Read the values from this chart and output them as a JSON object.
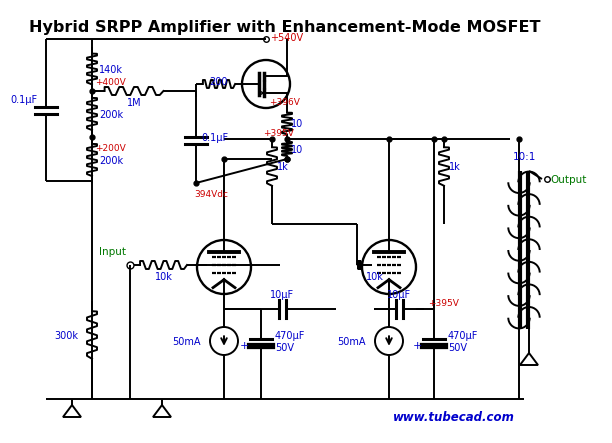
{
  "title": "Hybrid SRPP Amplifier with Enhancement-Mode MOSFET",
  "title_fontsize": 11.5,
  "bg_color": "#ffffff",
  "wire_color": "#000000",
  "label_blue": "#0000cc",
  "label_red": "#cc0000",
  "label_green": "#007700",
  "website": "www.tubecad.com",
  "lw": 1.4,
  "V_540": "+540V",
  "V_400": "+400V",
  "V_396": "+396V",
  "V_395_top": "+395V",
  "V_395_bot": "+395V",
  "V_200": "+200V",
  "V_394": "394Vdc",
  "ratio": "10:1",
  "output_label": "Output",
  "input_label": "Input",
  "R_140k": "140k",
  "R_1M": "1M",
  "R_200": "200",
  "R_200k_top": "200k",
  "R_200k_bot": "200k",
  "R_10_top": "10",
  "R_10_bot": "10",
  "R_1k_left": "1k",
  "R_1k_right": "1k",
  "R_10k_left": "10k",
  "R_10k_right": "10k",
  "R_300k": "300k",
  "C_01uF_left": "0.1μF",
  "C_01uF_mid": "0.1μF",
  "C_470uF_left": "470μF\n50V",
  "C_470uF_right": "470μF\n50V",
  "C_10uF_left": "10μF",
  "C_10uF_right": "10μF",
  "I_50mA_left": "50mA",
  "I_50mA_right": "50mA"
}
